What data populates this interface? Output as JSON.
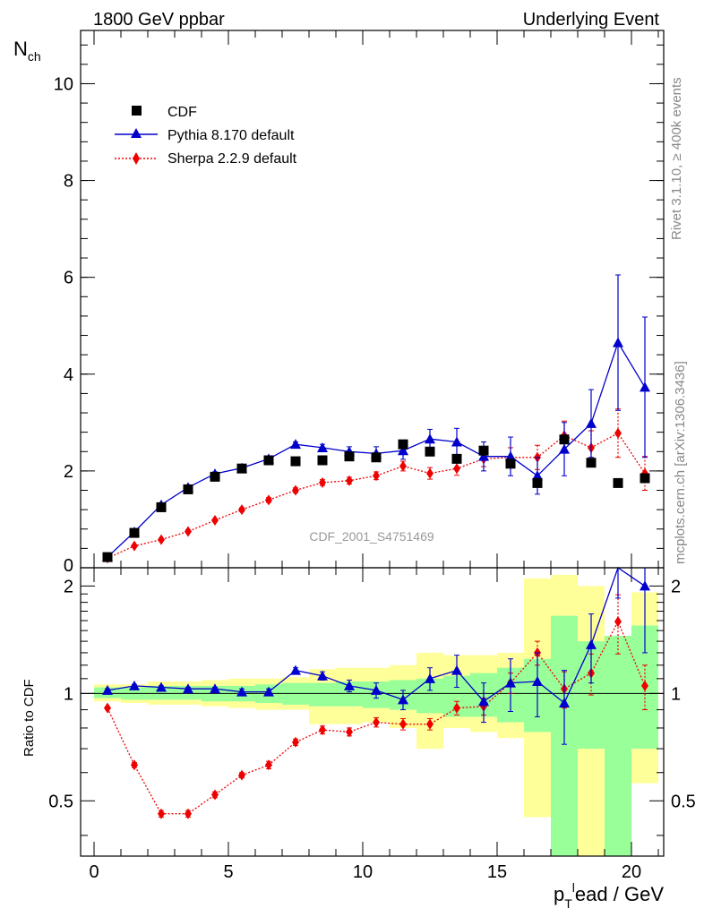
{
  "header": {
    "left": "1800 GeV ppbar",
    "right": "Underlying Event",
    "rivet": "Rivet 3.1.10, ≥ 400k events",
    "mcplots": "mcplots.cern.ch [arXiv:1306.3436]",
    "watermark": "CDF_2001_S4751469"
  },
  "colors": {
    "cdf": "#000000",
    "pythia": "#0000cc",
    "sherpa": "#ee0000",
    "band_inner": "#99ff99",
    "band_outer": "#ffff99"
  },
  "chart_data": [
    {
      "type": "scatter",
      "title": "Underlying Event",
      "ylabel_main": "N",
      "ylabel_sub": "ch",
      "ylim": [
        0,
        11.1
      ],
      "xlim": [
        -0.5,
        21.2
      ],
      "yticks": [
        2,
        4,
        6,
        8,
        10
      ],
      "ytick_labels": [
        "2",
        "4",
        "6",
        "8",
        "10"
      ],
      "y0_label": "0",
      "legend": [
        "CDF",
        "Pythia 8.170 default",
        "Sherpa 2.2.9 default"
      ],
      "x": [
        0.5,
        1.5,
        2.5,
        3.5,
        4.5,
        5.5,
        6.5,
        7.5,
        8.5,
        9.5,
        10.5,
        11.5,
        12.5,
        13.5,
        14.5,
        15.5,
        16.5,
        17.5,
        18.5,
        19.5,
        20.5
      ],
      "series": [
        {
          "name": "CDF",
          "values": [
            0.22,
            0.72,
            1.25,
            1.62,
            1.88,
            2.05,
            2.22,
            2.2,
            2.22,
            2.3,
            2.28,
            2.55,
            2.4,
            2.25,
            2.42,
            2.15,
            1.75,
            2.65,
            2.17,
            1.75,
            1.85
          ]
        },
        {
          "name": "Pythia 8.170 default",
          "values": [
            0.22,
            0.74,
            1.3,
            1.66,
            1.94,
            2.06,
            2.25,
            2.55,
            2.48,
            2.4,
            2.36,
            2.42,
            2.66,
            2.6,
            2.3,
            2.3,
            1.9,
            2.45,
            2.98,
            4.65,
            3.73
          ],
          "errors": [
            0.02,
            0.02,
            0.03,
            0.03,
            0.04,
            0.04,
            0.04,
            0.05,
            0.07,
            0.1,
            0.14,
            0.18,
            0.2,
            0.28,
            0.3,
            0.4,
            0.38,
            0.55,
            0.7,
            1.4,
            1.45
          ]
        },
        {
          "name": "Sherpa 2.2.9 default",
          "values": [
            0.2,
            0.45,
            0.58,
            0.75,
            0.98,
            1.2,
            1.4,
            1.6,
            1.76,
            1.8,
            1.9,
            2.1,
            1.95,
            2.05,
            2.25,
            2.28,
            2.28,
            2.73,
            2.48,
            2.78,
            1.95
          ],
          "errors": [
            0.01,
            0.02,
            0.02,
            0.03,
            0.03,
            0.04,
            0.05,
            0.05,
            0.06,
            0.07,
            0.08,
            0.1,
            0.12,
            0.14,
            0.16,
            0.2,
            0.25,
            0.3,
            0.35,
            0.5,
            0.35
          ]
        }
      ]
    },
    {
      "type": "scatter",
      "title": "Ratio to CDF",
      "ylabel": "Ratio to CDF",
      "xlabel": "ead / GeV",
      "xlabel_p": "p",
      "xlabel_sub": "T",
      "xlabel_sup": "l",
      "ylim": [
        0.35,
        2.25
      ],
      "log_y": true,
      "xlim": [
        -0.5,
        21.2
      ],
      "xticks": [
        0,
        5,
        10,
        15,
        20
      ],
      "xtick_labels": [
        "0",
        "5",
        "10",
        "15",
        "20"
      ],
      "yticks": [
        0.5,
        1,
        2
      ],
      "ytick_labels": [
        "0.5",
        "1",
        "2"
      ],
      "x": [
        0.5,
        1.5,
        2.5,
        3.5,
        4.5,
        5.5,
        6.5,
        7.5,
        8.5,
        9.5,
        10.5,
        11.5,
        12.5,
        13.5,
        14.5,
        15.5,
        16.5,
        17.5,
        18.5,
        19.5,
        20.5
      ],
      "bands": {
        "inner": [
          [
            0.97,
            1.04
          ],
          [
            0.96,
            1.04
          ],
          [
            0.96,
            1.05
          ],
          [
            0.96,
            1.05
          ],
          [
            0.95,
            1.05
          ],
          [
            0.95,
            1.05
          ],
          [
            0.94,
            1.06
          ],
          [
            0.93,
            1.07
          ],
          [
            0.92,
            1.07
          ],
          [
            0.92,
            1.08
          ],
          [
            0.91,
            1.08
          ],
          [
            0.9,
            1.09
          ],
          [
            0.88,
            1.1
          ],
          [
            0.86,
            1.12
          ],
          [
            0.86,
            1.14
          ],
          [
            0.83,
            1.18
          ],
          [
            0.78,
            1.25
          ],
          [
            0.35,
            1.65
          ],
          [
            0.7,
            1.4
          ],
          [
            0.35,
            1.45
          ],
          [
            0.7,
            1.55
          ]
        ],
        "outer": [
          [
            0.95,
            1.06
          ],
          [
            0.94,
            1.06
          ],
          [
            0.93,
            1.08
          ],
          [
            0.93,
            1.08
          ],
          [
            0.92,
            1.09
          ],
          [
            0.91,
            1.1
          ],
          [
            0.9,
            1.1
          ],
          [
            0.9,
            1.11
          ],
          [
            0.82,
            1.17
          ],
          [
            0.82,
            1.18
          ],
          [
            0.83,
            1.18
          ],
          [
            0.8,
            1.2
          ],
          [
            0.7,
            1.3
          ],
          [
            0.8,
            1.28
          ],
          [
            0.78,
            1.28
          ],
          [
            0.75,
            1.3
          ],
          [
            0.45,
            2.1
          ],
          [
            0.38,
            2.15
          ],
          [
            0.35,
            2.0
          ],
          [
            0.35,
            1.42
          ],
          [
            0.56,
            1.92
          ]
        ]
      },
      "series": [
        {
          "name": "Pythia 8.170 default",
          "values": [
            1.02,
            1.05,
            1.04,
            1.03,
            1.03,
            1.01,
            1.01,
            1.16,
            1.12,
            1.05,
            1.02,
            0.96,
            1.1,
            1.16,
            0.95,
            1.07,
            1.08,
            0.94,
            1.37,
            2.45,
            2.0
          ],
          "errors": [
            0.01,
            0.01,
            0.01,
            0.01,
            0.01,
            0.02,
            0.02,
            0.02,
            0.03,
            0.04,
            0.05,
            0.06,
            0.08,
            0.12,
            0.12,
            0.18,
            0.22,
            0.22,
            0.3,
            0.6,
            0.7
          ]
        },
        {
          "name": "Sherpa 2.2.9 default",
          "values": [
            0.91,
            0.63,
            0.46,
            0.46,
            0.52,
            0.59,
            0.63,
            0.73,
            0.79,
            0.78,
            0.83,
            0.82,
            0.82,
            0.91,
            0.92,
            1.07,
            1.3,
            1.03,
            1.14,
            1.59,
            1.05
          ],
          "errors": [
            0.005,
            0.01,
            0.01,
            0.01,
            0.01,
            0.01,
            0.015,
            0.015,
            0.02,
            0.02,
            0.025,
            0.03,
            0.03,
            0.04,
            0.05,
            0.07,
            0.1,
            0.12,
            0.15,
            0.3,
            0.15
          ]
        }
      ]
    }
  ]
}
